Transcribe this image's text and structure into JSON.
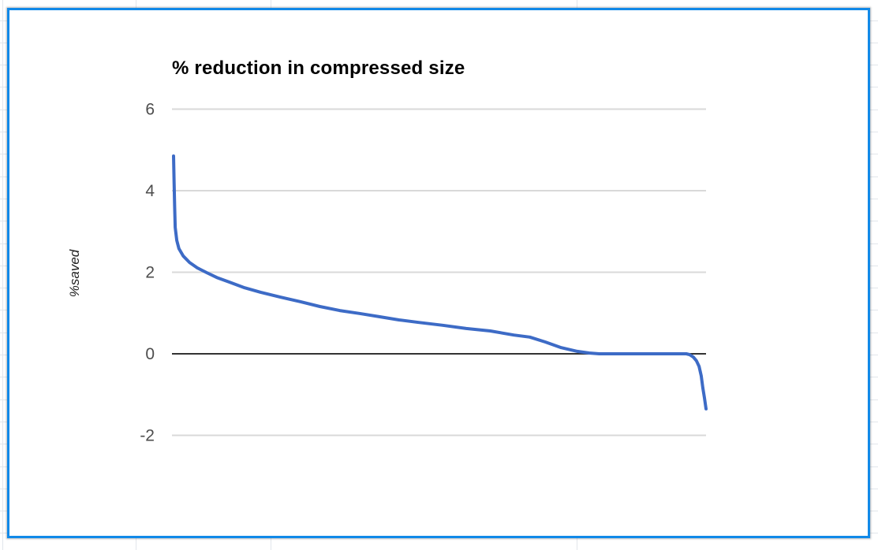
{
  "colors": {
    "selection_border": "#1189e8",
    "sheet_grid": "#e2e6eb",
    "card_background": "#ffffff",
    "plot_gridline": "#d9d9d9",
    "zero_axis": "#333333",
    "tick_label": "#4d4d4d",
    "title_color": "#000000",
    "ylabel_color": "#212121",
    "series_line": "#3d6bc6"
  },
  "chart_data": {
    "type": "line",
    "title": "% reduction in compressed size",
    "xlabel": "",
    "ylabel": "%saved",
    "x_tick_labels": [],
    "y_ticks": [
      6,
      4,
      2,
      0,
      -2
    ],
    "ylim": [
      -2.8,
      6.6
    ],
    "grid": true,
    "legend_position": "none",
    "series": [
      {
        "name": "%saved",
        "color": "#3d6bc6",
        "points": [
          [
            0.003,
            4.85
          ],
          [
            0.004,
            4.2
          ],
          [
            0.005,
            3.6
          ],
          [
            0.006,
            3.1
          ],
          [
            0.009,
            2.78
          ],
          [
            0.013,
            2.58
          ],
          [
            0.021,
            2.4
          ],
          [
            0.033,
            2.24
          ],
          [
            0.047,
            2.11
          ],
          [
            0.065,
            1.99
          ],
          [
            0.084,
            1.87
          ],
          [
            0.107,
            1.76
          ],
          [
            0.136,
            1.62
          ],
          [
            0.166,
            1.51
          ],
          [
            0.203,
            1.39
          ],
          [
            0.24,
            1.28
          ],
          [
            0.277,
            1.16
          ],
          [
            0.314,
            1.06
          ],
          [
            0.351,
            0.99
          ],
          [
            0.388,
            0.91
          ],
          [
            0.425,
            0.83
          ],
          [
            0.462,
            0.77
          ],
          [
            0.507,
            0.7
          ],
          [
            0.551,
            0.62
          ],
          [
            0.596,
            0.56
          ],
          [
            0.64,
            0.46
          ],
          [
            0.67,
            0.41
          ],
          [
            0.699,
            0.29
          ],
          [
            0.729,
            0.15
          ],
          [
            0.759,
            0.06
          ],
          [
            0.781,
            0.02
          ],
          [
            0.8,
            0.0
          ],
          [
            0.85,
            0.0
          ],
          [
            0.9,
            0.0
          ],
          [
            0.94,
            0.0
          ],
          [
            0.963,
            0.0
          ],
          [
            0.969,
            -0.02
          ],
          [
            0.976,
            -0.08
          ],
          [
            0.982,
            -0.17
          ],
          [
            0.987,
            -0.31
          ],
          [
            0.991,
            -0.54
          ],
          [
            0.994,
            -0.83
          ],
          [
            0.997,
            -1.08
          ],
          [
            1.0,
            -1.35
          ]
        ]
      }
    ]
  }
}
